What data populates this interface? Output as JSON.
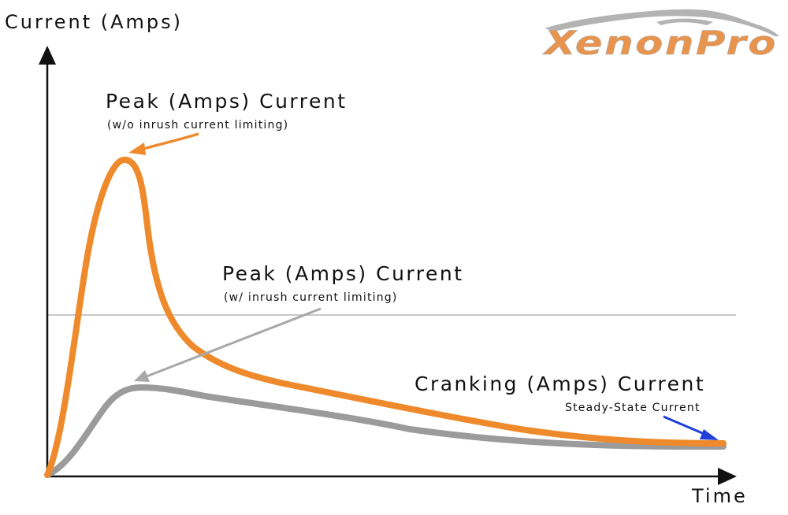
{
  "axes": {
    "y_label": "Current (Amps)",
    "x_label": "Time"
  },
  "annotations": {
    "peak_no_limit": {
      "title": "Peak (Amps) Current",
      "subtitle": "(w/o inrush current limiting)"
    },
    "peak_with_limit": {
      "title": "Peak (Amps) Current",
      "subtitle": "(w/ inrush current limiting)"
    },
    "cranking": {
      "title": "Cranking (Amps) Current",
      "subtitle": "Steady-State Current"
    }
  },
  "logo": {
    "text": "XenonPro"
  },
  "colors": {
    "orange_curve": "#ef8a2c",
    "gray_curve": "#9b9b9b",
    "axis": "#111111",
    "reference_line": "#b5b5b5",
    "steady_state_arrow": "#1f3fd6",
    "logo_orange": "#e8944d",
    "logo_gray": "#b3b3b3"
  }
}
